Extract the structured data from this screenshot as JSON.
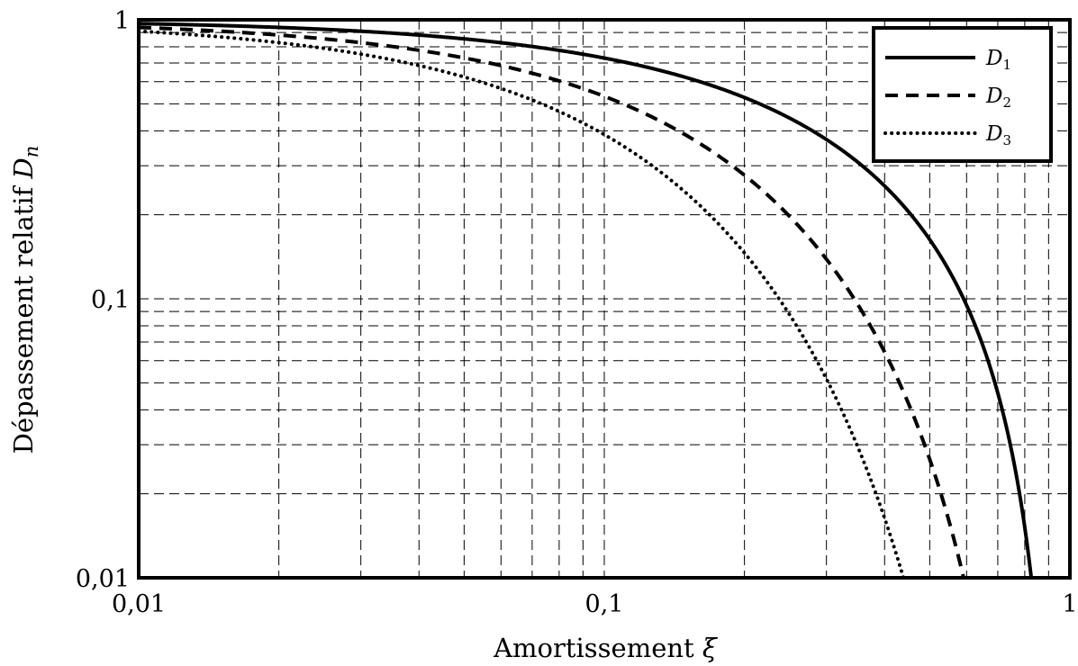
{
  "chart_data": {
    "type": "line",
    "xscale": "log",
    "yscale": "log",
    "xlim": [
      0.01,
      1
    ],
    "ylim": [
      0.01,
      1
    ],
    "xlabel": {
      "text": "Amortissement ",
      "symbol": "ξ"
    },
    "ylabel": {
      "text": "Dépassement relatif ",
      "symbol": "D",
      "subscript": "n"
    },
    "x_ticks": [
      {
        "value": 0.01,
        "label": "0,01"
      },
      {
        "value": 0.1,
        "label": "0,1"
      },
      {
        "value": 1,
        "label": "1"
      }
    ],
    "y_ticks": [
      {
        "value": 0.01,
        "label": "0,01"
      },
      {
        "value": 0.1,
        "label": "0,1"
      },
      {
        "value": 1,
        "label": "1"
      }
    ],
    "grid": "dashed, major and minor",
    "legend_position": "top-right",
    "series": [
      {
        "name": "D",
        "subscript": "1",
        "n": 1,
        "style": "solid",
        "x": [
          0.01,
          0.02,
          0.05,
          0.1,
          0.2,
          0.3,
          0.4,
          0.5,
          0.6,
          0.7,
          0.8
        ],
        "y": [
          0.969,
          0.939,
          0.855,
          0.729,
          0.527,
          0.372,
          0.254,
          0.163,
          0.095,
          0.046,
          0.015
        ]
      },
      {
        "name": "D",
        "subscript": "2",
        "n": 2,
        "style": "dashed",
        "x": [
          0.01,
          0.02,
          0.05,
          0.1,
          0.2,
          0.3,
          0.4,
          0.5,
          0.57
        ],
        "y": [
          0.939,
          0.882,
          0.73,
          0.532,
          0.278,
          0.139,
          0.065,
          0.027,
          0.012
        ]
      },
      {
        "name": "D",
        "subscript": "3",
        "n": 3,
        "style": "dotted",
        "x": [
          0.01,
          0.02,
          0.05,
          0.1,
          0.2,
          0.3,
          0.4,
          0.43
        ],
        "y": [
          0.91,
          0.828,
          0.624,
          0.388,
          0.146,
          0.052,
          0.016,
          0.011
        ]
      }
    ]
  }
}
